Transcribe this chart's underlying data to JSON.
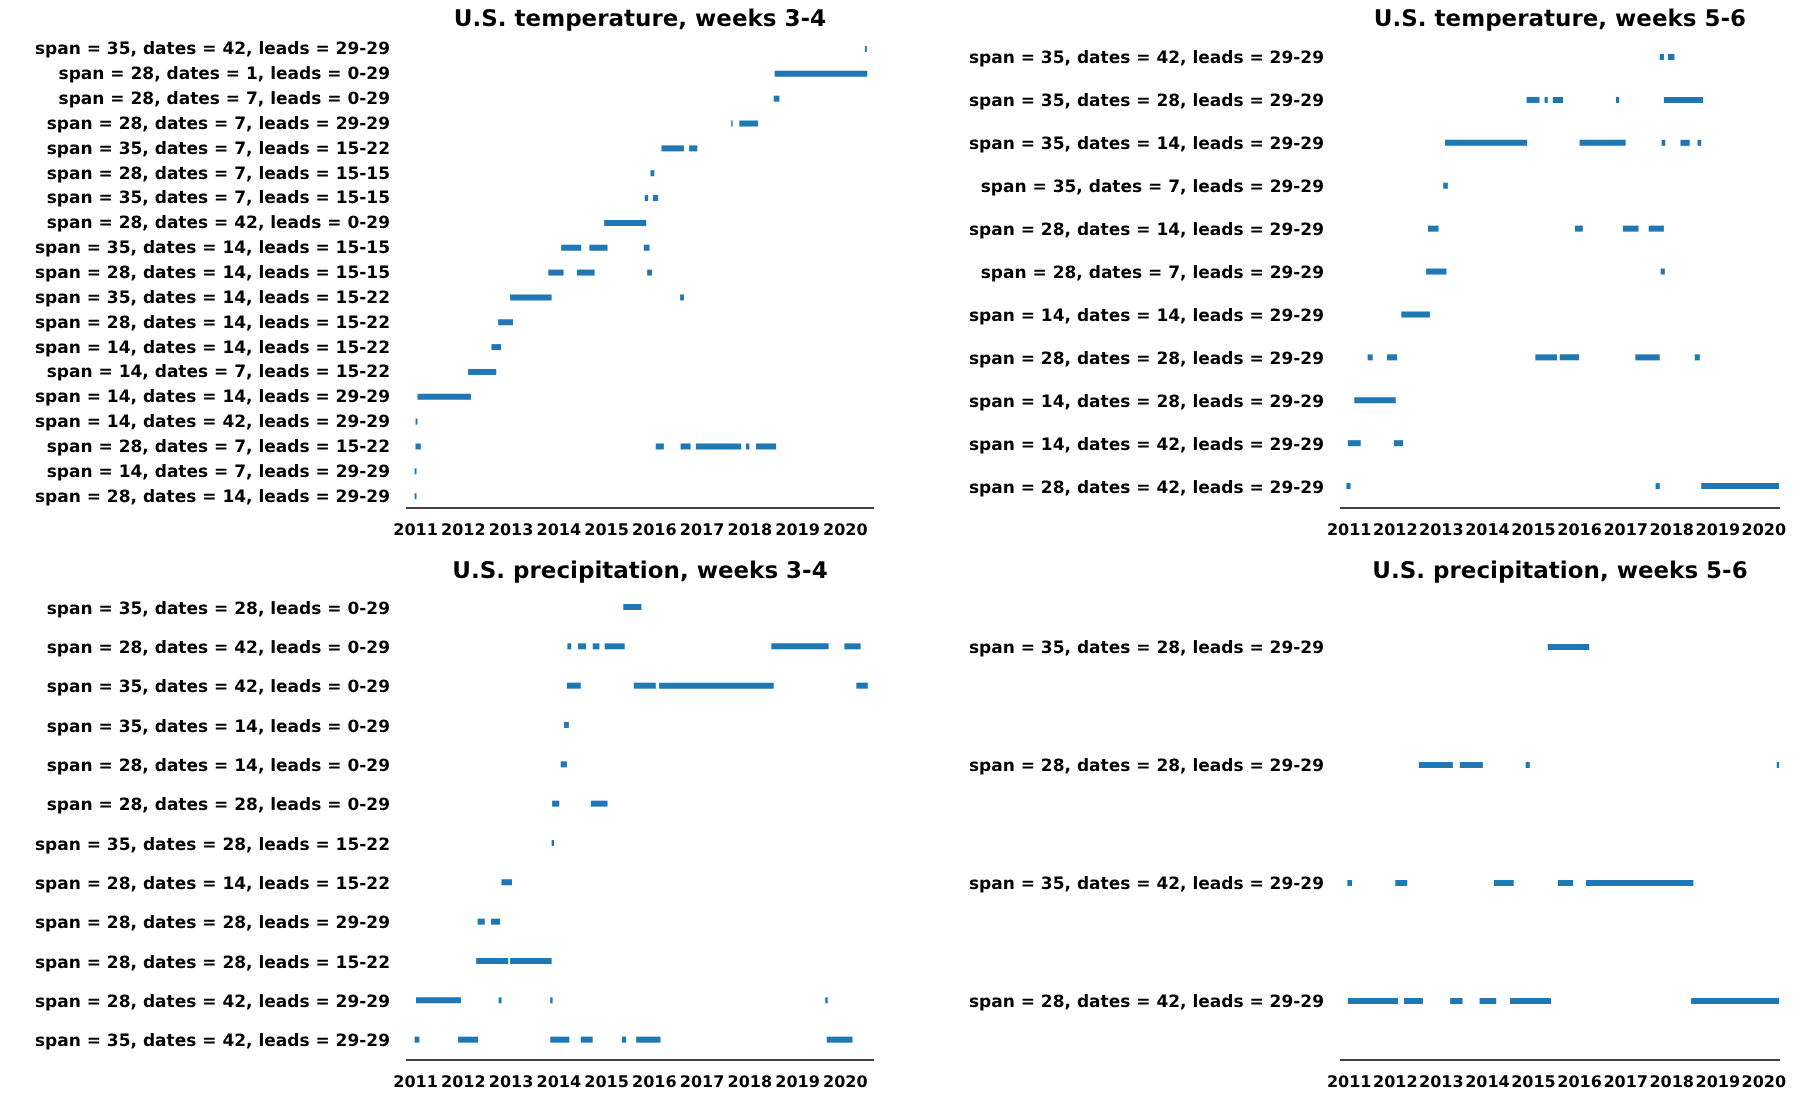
{
  "chart_data": [
    {
      "type": "bar",
      "orientation": "horizontal",
      "title": "U.S. temperature, weeks 3-4",
      "categories": [
        "span = 35, dates = 42, leads = 29-29",
        "span = 28, dates = 1, leads = 0-29",
        "span = 28, dates = 7, leads = 0-29",
        "span = 28, dates = 7, leads = 29-29",
        "span = 35, dates = 7, leads = 15-22",
        "span = 28, dates = 7, leads = 15-15",
        "span = 35, dates = 7, leads = 15-15",
        "span = 28, dates = 42, leads = 0-29",
        "span = 35, dates = 14, leads = 15-15",
        "span = 28, dates = 14, leads = 15-15",
        "span = 35, dates = 14, leads = 15-22",
        "span = 28, dates = 14, leads = 15-22",
        "span = 14, dates = 14, leads = 15-22",
        "span = 14, dates = 7, leads = 15-22",
        "span = 14, dates = 14, leads = 29-29",
        "span = 14, dates = 42, leads = 29-29",
        "span = 28, dates = 7, leads = 15-22",
        "span = 14, dates = 7, leads = 29-29",
        "span = 28, dates = 14, leads = 29-29"
      ],
      "xlim": [
        2010.8,
        2020.6
      ],
      "xticks": [
        2011,
        2012,
        2013,
        2014,
        2015,
        2016,
        2017,
        2018,
        2019,
        2020
      ],
      "series": [
        {
          "color": "#1f77b4",
          "base": [
            2020.41,
            2018.52,
            2018.5,
            2017.61,
            2016.15,
            2015.92,
            2015.8,
            2014.95,
            2014.05,
            2013.78,
            2012.98,
            2012.73,
            2012.59,
            2012.1,
            2011.04,
            2011.0,
            2011.0,
            2010.98,
            2010.98
          ],
          "values": [
            0.04,
            1.94,
            0.12,
            0.03,
            0.47,
            0.08,
            0.07,
            0.88,
            0.42,
            0.32,
            0.87,
            0.31,
            0.2,
            0.59,
            1.12,
            0.04,
            0.11,
            0.04,
            0.04
          ]
        },
        {
          "color": "#1f77b4",
          "base": [
            null,
            null,
            null,
            2017.78,
            2016.73,
            null,
            2015.97,
            null,
            2014.64,
            2014.38,
            2016.54,
            null,
            null,
            null,
            null,
            null,
            2016.03,
            null,
            null
          ],
          "values": [
            null,
            null,
            null,
            0.39,
            0.17,
            null,
            0.11,
            null,
            0.38,
            0.37,
            0.08,
            null,
            null,
            null,
            null,
            null,
            0.17,
            null,
            null
          ]
        },
        {
          "color": "#1f77b4",
          "base": [
            null,
            null,
            null,
            null,
            null,
            null,
            null,
            null,
            2015.78,
            2015.85,
            null,
            null,
            null,
            null,
            null,
            null,
            2016.55,
            null,
            null
          ],
          "values": [
            null,
            null,
            null,
            null,
            null,
            null,
            null,
            null,
            0.12,
            0.1,
            null,
            null,
            null,
            null,
            null,
            null,
            0.21,
            null,
            null
          ]
        },
        {
          "color": "#1f77b4",
          "base": [
            null,
            null,
            null,
            null,
            null,
            null,
            null,
            null,
            null,
            null,
            null,
            null,
            null,
            null,
            null,
            null,
            2016.87,
            null,
            null
          ],
          "values": [
            null,
            null,
            null,
            null,
            null,
            null,
            null,
            null,
            null,
            null,
            null,
            null,
            null,
            null,
            null,
            null,
            0.95,
            null,
            null
          ]
        },
        {
          "color": "#1f77b4",
          "base": [
            null,
            null,
            null,
            null,
            null,
            null,
            null,
            null,
            null,
            null,
            null,
            null,
            null,
            null,
            null,
            null,
            2017.92,
            null,
            null
          ],
          "values": [
            null,
            null,
            null,
            null,
            null,
            null,
            null,
            null,
            null,
            null,
            null,
            null,
            null,
            null,
            null,
            null,
            0.07,
            null,
            null
          ]
        },
        {
          "color": "#1f77b4",
          "base": [
            null,
            null,
            null,
            null,
            null,
            null,
            null,
            null,
            null,
            null,
            null,
            null,
            null,
            null,
            null,
            null,
            2018.13,
            null,
            null
          ],
          "values": [
            null,
            null,
            null,
            null,
            null,
            null,
            null,
            null,
            null,
            null,
            null,
            null,
            null,
            null,
            null,
            null,
            0.42,
            null,
            null
          ]
        }
      ]
    },
    {
      "type": "bar",
      "orientation": "horizontal",
      "title": "U.S. temperature, weeks 5-6",
      "categories": [
        "span = 35, dates = 42, leads = 29-29",
        "span = 35, dates = 28, leads = 29-29",
        "span = 35, dates = 14, leads = 29-29",
        "span = 35, dates = 7, leads = 29-29",
        "span = 28, dates = 14, leads = 29-29",
        "span = 28, dates = 7, leads = 29-29",
        "span = 14, dates = 14, leads = 29-29",
        "span = 28, dates = 28, leads = 29-29",
        "span = 14, dates = 28, leads = 29-29",
        "span = 14, dates = 42, leads = 29-29",
        "span = 28, dates = 42, leads = 29-29"
      ],
      "xlim": [
        2010.8,
        2020.35
      ],
      "xticks": [
        2011,
        2012,
        2013,
        2014,
        2015,
        2016,
        2017,
        2018,
        2019,
        2020
      ],
      "series": [
        {
          "color": "#1f77b4",
          "base": [
            2017.74,
            2014.85,
            2013.08,
            2013.04,
            2012.71,
            2012.67,
            2012.13,
            2011.4,
            2011.11,
            2010.97,
            2010.94
          ],
          "values": [
            0.09,
            0.28,
            1.78,
            0.1,
            0.23,
            0.44,
            0.62,
            0.11,
            0.9,
            0.28,
            0.09
          ]
        },
        {
          "color": "#1f77b4",
          "base": [
            2017.92,
            2015.24,
            2016.0,
            null,
            2015.9,
            2017.76,
            null,
            2011.82,
            null,
            2011.97,
            2017.65
          ],
          "values": [
            0.14,
            0.07,
            1.0,
            null,
            0.17,
            0.09,
            null,
            0.22,
            null,
            0.2,
            0.09
          ]
        },
        {
          "color": "#1f77b4",
          "base": [
            null,
            2015.42,
            2017.78,
            null,
            2016.94,
            null,
            null,
            2015.04,
            null,
            null,
            2018.64
          ],
          "values": [
            null,
            0.22,
            0.08,
            null,
            0.34,
            null,
            null,
            0.47,
            null,
            null,
            1.69
          ]
        },
        {
          "color": "#1f77b4",
          "base": [
            null,
            2016.79,
            2018.19,
            null,
            2017.5,
            null,
            null,
            2015.57,
            null,
            null,
            null
          ],
          "values": [
            null,
            0.07,
            0.2,
            null,
            0.33,
            null,
            null,
            0.42,
            null,
            null,
            null
          ]
        },
        {
          "color": "#1f77b4",
          "base": [
            null,
            2017.83,
            2018.56,
            null,
            null,
            null,
            null,
            2017.21,
            null,
            null,
            null
          ],
          "values": [
            null,
            0.85,
            0.08,
            null,
            null,
            null,
            null,
            0.53,
            null,
            null,
            null
          ]
        },
        {
          "color": "#1f77b4",
          "base": [
            null,
            null,
            null,
            null,
            null,
            null,
            null,
            2018.5,
            null,
            null,
            null
          ],
          "values": [
            null,
            null,
            null,
            null,
            null,
            null,
            null,
            0.11,
            null,
            null,
            null
          ]
        }
      ]
    },
    {
      "type": "bar",
      "orientation": "horizontal",
      "title": "U.S. precipitation, weeks 3-4",
      "categories": [
        "span = 35, dates = 28, leads = 0-29",
        "span = 28, dates = 42, leads = 0-29",
        "span = 35, dates = 42, leads = 0-29",
        "span = 35, dates = 14, leads = 0-29",
        "span = 28, dates = 14, leads = 0-29",
        "span = 28, dates = 28, leads = 0-29",
        "span = 35, dates = 28, leads = 15-22",
        "span = 28, dates = 14, leads = 15-22",
        "span = 28, dates = 28, leads = 29-29",
        "span = 28, dates = 28, leads = 15-22",
        "span = 28, dates = 42, leads = 29-29",
        "span = 35, dates = 42, leads = 29-29"
      ],
      "xlim": [
        2010.8,
        2020.6
      ],
      "xticks": [
        2011,
        2012,
        2013,
        2014,
        2015,
        2016,
        2017,
        2018,
        2019,
        2020
      ],
      "series": [
        {
          "color": "#1f77b4",
          "base": [
            2015.35,
            2014.18,
            2014.17,
            2014.11,
            2014.04,
            2013.86,
            2013.85,
            2012.8,
            2012.3,
            2012.27,
            2011.01,
            2010.98
          ],
          "values": [
            0.38,
            0.08,
            0.29,
            0.1,
            0.13,
            0.15,
            0.05,
            0.22,
            0.15,
            0.67,
            0.94,
            0.1
          ]
        },
        {
          "color": "#1f77b4",
          "base": [
            null,
            2014.4,
            2015.57,
            null,
            null,
            2014.67,
            null,
            null,
            2012.58,
            2012.98,
            2012.74,
            2011.89
          ],
          "values": [
            null,
            0.17,
            0.46,
            null,
            null,
            0.35,
            null,
            null,
            0.19,
            0.87,
            0.06,
            0.42
          ]
        },
        {
          "color": "#1f77b4",
          "base": [
            null,
            2014.71,
            2016.1,
            null,
            null,
            null,
            null,
            null,
            null,
            null,
            2013.82,
            2013.82
          ],
          "values": [
            null,
            0.14,
            2.4,
            null,
            null,
            null,
            null,
            null,
            null,
            null,
            0.05,
            0.4
          ]
        },
        {
          "color": "#1f77b4",
          "base": [
            null,
            2014.96,
            2020.23,
            null,
            null,
            null,
            null,
            null,
            null,
            null,
            2019.58,
            2014.46
          ],
          "values": [
            null,
            0.42,
            0.24,
            null,
            null,
            null,
            null,
            null,
            null,
            null,
            0.05,
            0.25
          ]
        },
        {
          "color": "#1f77b4",
          "base": [
            null,
            2018.45,
            null,
            null,
            null,
            null,
            null,
            null,
            null,
            null,
            null,
            2015.32
          ],
          "values": [
            null,
            1.2,
            null,
            null,
            null,
            null,
            null,
            null,
            null,
            null,
            null,
            0.09
          ]
        },
        {
          "color": "#1f77b4",
          "base": [
            null,
            2019.98,
            null,
            null,
            null,
            null,
            null,
            null,
            null,
            null,
            null,
            2015.62
          ],
          "values": [
            null,
            0.34,
            null,
            null,
            null,
            null,
            null,
            null,
            null,
            null,
            null,
            0.51
          ]
        },
        {
          "color": "#1f77b4",
          "base": [
            null,
            null,
            null,
            null,
            null,
            null,
            null,
            null,
            null,
            null,
            null,
            2019.61
          ],
          "values": [
            null,
            null,
            null,
            null,
            null,
            null,
            null,
            null,
            null,
            null,
            null,
            0.54
          ]
        }
      ]
    },
    {
      "type": "bar",
      "orientation": "horizontal",
      "title": "U.S. precipitation, weeks 5-6",
      "categories": [
        "span = 35, dates = 28, leads = 29-29",
        "span = 28, dates = 28, leads = 29-29",
        "span = 35, dates = 42, leads = 29-29",
        "span = 28, dates = 42, leads = 29-29"
      ],
      "xlim": [
        2010.8,
        2020.35
      ],
      "xticks": [
        2011,
        2012,
        2013,
        2014,
        2015,
        2016,
        2017,
        2018,
        2019,
        2020
      ],
      "series": [
        {
          "color": "#1f77b4",
          "base": [
            2015.31,
            2012.51,
            2010.96,
            2010.97
          ],
          "values": [
            0.9,
            0.74,
            0.1,
            1.09
          ]
        },
        {
          "color": "#1f77b4",
          "base": [
            null,
            2013.4,
            2012.0,
            2012.19
          ],
          "values": [
            null,
            0.5,
            0.26,
            0.41
          ]
        },
        {
          "color": "#1f77b4",
          "base": [
            null,
            2014.83,
            2014.14,
            2013.19
          ],
          "values": [
            null,
            0.09,
            0.43,
            0.27
          ]
        },
        {
          "color": "#1f77b4",
          "base": [
            null,
            2020.28,
            2015.53,
            2013.83
          ],
          "values": [
            null,
            0.05,
            0.33,
            0.36
          ]
        },
        {
          "color": "#1f77b4",
          "base": [
            null,
            null,
            2016.14,
            2014.49
          ],
          "values": [
            null,
            null,
            2.33,
            0.89
          ]
        },
        {
          "color": "#1f77b4",
          "base": [
            null,
            null,
            null,
            2018.42
          ],
          "values": [
            null,
            null,
            null,
            1.91
          ]
        }
      ]
    }
  ]
}
